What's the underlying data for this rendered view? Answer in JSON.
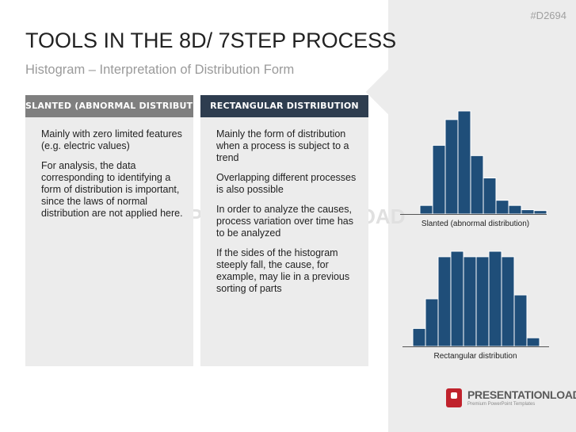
{
  "doc_id": "#D2694",
  "title": "TOOLS IN THE 8D/ 7STEP PROCESS",
  "subtitle": "Histogram – Interpretation of Distribution Form",
  "columns": [
    {
      "header": "SLANTED (ABNORMAL DISTRIBUTION)",
      "paragraphs": [
        "Mainly with zero limited features (e.g. electric values)",
        "For analysis, the data corresponding to identifying a form of distribution is important, since the laws of normal distribution are not applied here."
      ]
    },
    {
      "header": "RECTANGULAR DISTRIBUTION",
      "paragraphs": [
        "Mainly the form of distribution when a process is subject to a trend",
        "Overlapping different processes is also possible",
        "In order to analyze the causes, process variation over time has to be analyzed",
        "If the sides of the histogram steeply fall, the cause, for example, may lie in a previous sorting of parts"
      ]
    }
  ],
  "watermark": "PRESENTATIONLOAD",
  "colors": {
    "bar": "#1f4e79",
    "header_grey": "#7f7f7f",
    "header_dark": "#2e3d4f",
    "logo_red": "#c0222c"
  },
  "chart_data": [
    {
      "type": "bar",
      "title": "Slanted (abnormal distribution)",
      "values": [
        1.0,
        8.0,
        11.0,
        12.0,
        6.8,
        4.2,
        1.6,
        1.0,
        0.5,
        0.4
      ],
      "grid": false,
      "legend": "none"
    },
    {
      "type": "bar",
      "title": "Rectangular distribution",
      "values": [
        2.3,
        6.1,
        11.5,
        12.2,
        11.5,
        11.5,
        12.2,
        11.5,
        6.6,
        1.1
      ],
      "grid": false,
      "legend": "none"
    }
  ],
  "logo": {
    "name": "PRESENTATIONLOAD",
    "tagline": "Premium PowerPoint Templates"
  }
}
